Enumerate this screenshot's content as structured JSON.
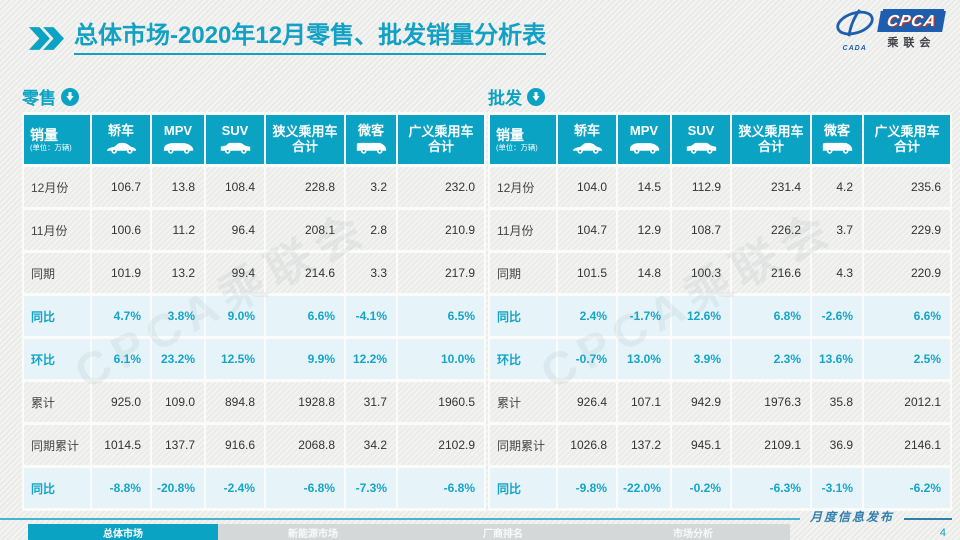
{
  "slide": {
    "title_prefix": "总体市场",
    "title_rest": "-2020年12月零售、批发销量分析表",
    "watermark": "CPCA乘联会",
    "publish_label": "月度信息发布",
    "page_number": "4"
  },
  "logo": {
    "acronym": "CPCA",
    "chinese": "乘联会",
    "cada": "CADA"
  },
  "colors": {
    "accent": "#0ba3c4",
    "highlight_row_bg": "#e6f4f9",
    "logo_blue": "#1d5fae",
    "footer_blue": "#2f7fae"
  },
  "tables": [
    {
      "section_label": "零售",
      "section_icon": "download-arrow-icon",
      "header": {
        "title": "销量",
        "unit": "(单位：万辆)",
        "columns": [
          {
            "label": "轿车",
            "icon": "sedan-icon"
          },
          {
            "label": "MPV",
            "icon": "mpv-icon"
          },
          {
            "label": "SUV",
            "icon": "suv-icon"
          },
          {
            "label": "狭义乘用车",
            "label2": "合计"
          },
          {
            "label": "微客",
            "icon": "van-icon"
          },
          {
            "label": "广义乘用车",
            "label2": "合计"
          }
        ]
      },
      "rows": [
        {
          "label": "12月份",
          "type": "normal",
          "values": [
            "106.7",
            "13.8",
            "108.4",
            "228.8",
            "3.2",
            "232.0"
          ]
        },
        {
          "label": "11月份",
          "type": "normal",
          "values": [
            "100.6",
            "11.2",
            "96.4",
            "208.1",
            "2.8",
            "210.9"
          ]
        },
        {
          "label": "同期",
          "type": "normal",
          "values": [
            "101.9",
            "13.2",
            "99.4",
            "214.6",
            "3.3",
            "217.9"
          ]
        },
        {
          "label": "同比",
          "type": "pct",
          "values": [
            "4.7%",
            "3.8%",
            "9.0%",
            "6.6%",
            "-4.1%",
            "6.5%"
          ]
        },
        {
          "label": "环比",
          "type": "pct",
          "values": [
            "6.1%",
            "23.2%",
            "12.5%",
            "9.9%",
            "12.2%",
            "10.0%"
          ]
        },
        {
          "label": "累计",
          "type": "normal",
          "values": [
            "925.0",
            "109.0",
            "894.8",
            "1928.8",
            "31.7",
            "1960.5"
          ]
        },
        {
          "label": "同期累计",
          "type": "normal",
          "values": [
            "1014.5",
            "137.7",
            "916.6",
            "2068.8",
            "34.2",
            "2102.9"
          ]
        },
        {
          "label": "同比",
          "type": "pct",
          "values": [
            "-8.8%",
            "-20.8%",
            "-2.4%",
            "-6.8%",
            "-7.3%",
            "-6.8%"
          ]
        }
      ]
    },
    {
      "section_label": "批发",
      "section_icon": "download-arrow-icon",
      "header": {
        "title": "销量",
        "unit": "(单位：万辆)",
        "columns": [
          {
            "label": "轿车",
            "icon": "sedan-icon"
          },
          {
            "label": "MPV",
            "icon": "mpv-icon"
          },
          {
            "label": "SUV",
            "icon": "suv-icon"
          },
          {
            "label": "狭义乘用车",
            "label2": "合计"
          },
          {
            "label": "微客",
            "icon": "van-icon"
          },
          {
            "label": "广义乘用车",
            "label2": "合计"
          }
        ]
      },
      "rows": [
        {
          "label": "12月份",
          "type": "normal",
          "values": [
            "104.0",
            "14.5",
            "112.9",
            "231.4",
            "4.2",
            "235.6"
          ]
        },
        {
          "label": "11月份",
          "type": "normal",
          "values": [
            "104.7",
            "12.9",
            "108.7",
            "226.2",
            "3.7",
            "229.9"
          ]
        },
        {
          "label": "同期",
          "type": "normal",
          "values": [
            "101.5",
            "14.8",
            "100.3",
            "216.6",
            "4.3",
            "220.9"
          ]
        },
        {
          "label": "同比",
          "type": "pct",
          "values": [
            "2.4%",
            "-1.7%",
            "12.6%",
            "6.8%",
            "-2.6%",
            "6.6%"
          ]
        },
        {
          "label": "环比",
          "type": "pct",
          "values": [
            "-0.7%",
            "13.0%",
            "3.9%",
            "2.3%",
            "13.6%",
            "2.5%"
          ]
        },
        {
          "label": "累计",
          "type": "normal",
          "values": [
            "926.4",
            "107.1",
            "942.9",
            "1976.3",
            "35.8",
            "2012.1"
          ]
        },
        {
          "label": "同期累计",
          "type": "normal",
          "values": [
            "1026.8",
            "137.2",
            "945.1",
            "2109.1",
            "36.9",
            "2146.1"
          ]
        },
        {
          "label": "同比",
          "type": "pct",
          "values": [
            "-9.8%",
            "-22.0%",
            "-0.2%",
            "-6.3%",
            "-3.1%",
            "-6.2%"
          ]
        }
      ]
    }
  ],
  "footer_tabs": [
    {
      "label": "总体市场",
      "active": true
    },
    {
      "label": "新能源市场",
      "active": false
    },
    {
      "label": "厂商排名",
      "active": false
    },
    {
      "label": "市场分析",
      "active": false
    }
  ]
}
